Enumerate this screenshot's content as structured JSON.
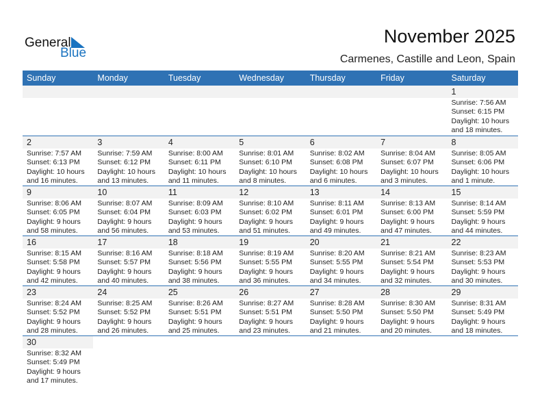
{
  "logo": {
    "text_general": "General",
    "text_blue": "Blue"
  },
  "title": "November 2025",
  "subtitle": "Carmenes, Castille and Leon, Spain",
  "colors": {
    "accent": "#2f72b4",
    "band": "#f2f2f2"
  },
  "weekdays": [
    "Sunday",
    "Monday",
    "Tuesday",
    "Wednesday",
    "Thursday",
    "Friday",
    "Saturday"
  ],
  "weeks": [
    [
      null,
      null,
      null,
      null,
      null,
      null,
      {
        "day": "1",
        "sunrise": "Sunrise: 7:56 AM",
        "sunset": "Sunset: 6:15 PM",
        "daylight1": "Daylight: 10 hours",
        "daylight2": "and 18 minutes."
      }
    ],
    [
      {
        "day": "2",
        "sunrise": "Sunrise: 7:57 AM",
        "sunset": "Sunset: 6:13 PM",
        "daylight1": "Daylight: 10 hours",
        "daylight2": "and 16 minutes."
      },
      {
        "day": "3",
        "sunrise": "Sunrise: 7:59 AM",
        "sunset": "Sunset: 6:12 PM",
        "daylight1": "Daylight: 10 hours",
        "daylight2": "and 13 minutes."
      },
      {
        "day": "4",
        "sunrise": "Sunrise: 8:00 AM",
        "sunset": "Sunset: 6:11 PM",
        "daylight1": "Daylight: 10 hours",
        "daylight2": "and 11 minutes."
      },
      {
        "day": "5",
        "sunrise": "Sunrise: 8:01 AM",
        "sunset": "Sunset: 6:10 PM",
        "daylight1": "Daylight: 10 hours",
        "daylight2": "and 8 minutes."
      },
      {
        "day": "6",
        "sunrise": "Sunrise: 8:02 AM",
        "sunset": "Sunset: 6:08 PM",
        "daylight1": "Daylight: 10 hours",
        "daylight2": "and 6 minutes."
      },
      {
        "day": "7",
        "sunrise": "Sunrise: 8:04 AM",
        "sunset": "Sunset: 6:07 PM",
        "daylight1": "Daylight: 10 hours",
        "daylight2": "and 3 minutes."
      },
      {
        "day": "8",
        "sunrise": "Sunrise: 8:05 AM",
        "sunset": "Sunset: 6:06 PM",
        "daylight1": "Daylight: 10 hours",
        "daylight2": "and 1 minute."
      }
    ],
    [
      {
        "day": "9",
        "sunrise": "Sunrise: 8:06 AM",
        "sunset": "Sunset: 6:05 PM",
        "daylight1": "Daylight: 9 hours",
        "daylight2": "and 58 minutes."
      },
      {
        "day": "10",
        "sunrise": "Sunrise: 8:07 AM",
        "sunset": "Sunset: 6:04 PM",
        "daylight1": "Daylight: 9 hours",
        "daylight2": "and 56 minutes."
      },
      {
        "day": "11",
        "sunrise": "Sunrise: 8:09 AM",
        "sunset": "Sunset: 6:03 PM",
        "daylight1": "Daylight: 9 hours",
        "daylight2": "and 53 minutes."
      },
      {
        "day": "12",
        "sunrise": "Sunrise: 8:10 AM",
        "sunset": "Sunset: 6:02 PM",
        "daylight1": "Daylight: 9 hours",
        "daylight2": "and 51 minutes."
      },
      {
        "day": "13",
        "sunrise": "Sunrise: 8:11 AM",
        "sunset": "Sunset: 6:01 PM",
        "daylight1": "Daylight: 9 hours",
        "daylight2": "and 49 minutes."
      },
      {
        "day": "14",
        "sunrise": "Sunrise: 8:13 AM",
        "sunset": "Sunset: 6:00 PM",
        "daylight1": "Daylight: 9 hours",
        "daylight2": "and 47 minutes."
      },
      {
        "day": "15",
        "sunrise": "Sunrise: 8:14 AM",
        "sunset": "Sunset: 5:59 PM",
        "daylight1": "Daylight: 9 hours",
        "daylight2": "and 44 minutes."
      }
    ],
    [
      {
        "day": "16",
        "sunrise": "Sunrise: 8:15 AM",
        "sunset": "Sunset: 5:58 PM",
        "daylight1": "Daylight: 9 hours",
        "daylight2": "and 42 minutes."
      },
      {
        "day": "17",
        "sunrise": "Sunrise: 8:16 AM",
        "sunset": "Sunset: 5:57 PM",
        "daylight1": "Daylight: 9 hours",
        "daylight2": "and 40 minutes."
      },
      {
        "day": "18",
        "sunrise": "Sunrise: 8:18 AM",
        "sunset": "Sunset: 5:56 PM",
        "daylight1": "Daylight: 9 hours",
        "daylight2": "and 38 minutes."
      },
      {
        "day": "19",
        "sunrise": "Sunrise: 8:19 AM",
        "sunset": "Sunset: 5:55 PM",
        "daylight1": "Daylight: 9 hours",
        "daylight2": "and 36 minutes."
      },
      {
        "day": "20",
        "sunrise": "Sunrise: 8:20 AM",
        "sunset": "Sunset: 5:55 PM",
        "daylight1": "Daylight: 9 hours",
        "daylight2": "and 34 minutes."
      },
      {
        "day": "21",
        "sunrise": "Sunrise: 8:21 AM",
        "sunset": "Sunset: 5:54 PM",
        "daylight1": "Daylight: 9 hours",
        "daylight2": "and 32 minutes."
      },
      {
        "day": "22",
        "sunrise": "Sunrise: 8:23 AM",
        "sunset": "Sunset: 5:53 PM",
        "daylight1": "Daylight: 9 hours",
        "daylight2": "and 30 minutes."
      }
    ],
    [
      {
        "day": "23",
        "sunrise": "Sunrise: 8:24 AM",
        "sunset": "Sunset: 5:52 PM",
        "daylight1": "Daylight: 9 hours",
        "daylight2": "and 28 minutes."
      },
      {
        "day": "24",
        "sunrise": "Sunrise: 8:25 AM",
        "sunset": "Sunset: 5:52 PM",
        "daylight1": "Daylight: 9 hours",
        "daylight2": "and 26 minutes."
      },
      {
        "day": "25",
        "sunrise": "Sunrise: 8:26 AM",
        "sunset": "Sunset: 5:51 PM",
        "daylight1": "Daylight: 9 hours",
        "daylight2": "and 25 minutes."
      },
      {
        "day": "26",
        "sunrise": "Sunrise: 8:27 AM",
        "sunset": "Sunset: 5:51 PM",
        "daylight1": "Daylight: 9 hours",
        "daylight2": "and 23 minutes."
      },
      {
        "day": "27",
        "sunrise": "Sunrise: 8:28 AM",
        "sunset": "Sunset: 5:50 PM",
        "daylight1": "Daylight: 9 hours",
        "daylight2": "and 21 minutes."
      },
      {
        "day": "28",
        "sunrise": "Sunrise: 8:30 AM",
        "sunset": "Sunset: 5:50 PM",
        "daylight1": "Daylight: 9 hours",
        "daylight2": "and 20 minutes."
      },
      {
        "day": "29",
        "sunrise": "Sunrise: 8:31 AM",
        "sunset": "Sunset: 5:49 PM",
        "daylight1": "Daylight: 9 hours",
        "daylight2": "and 18 minutes."
      }
    ],
    [
      {
        "day": "30",
        "sunrise": "Sunrise: 8:32 AM",
        "sunset": "Sunset: 5:49 PM",
        "daylight1": "Daylight: 9 hours",
        "daylight2": "and 17 minutes."
      }
    ]
  ]
}
